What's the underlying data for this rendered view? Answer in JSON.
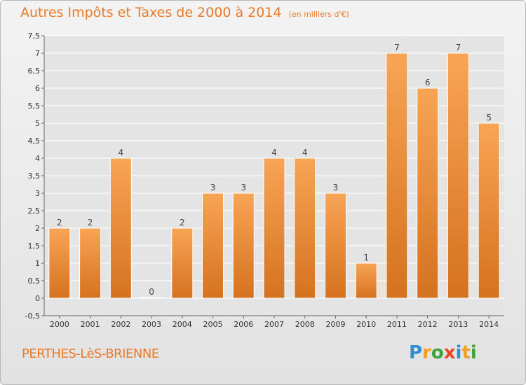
{
  "chart_data": {
    "type": "bar",
    "title": "Autres Impôts et Taxes de 2000 à 2014",
    "unit": "(en milliers d'€)",
    "categories": [
      "2000",
      "2001",
      "2002",
      "2003",
      "2004",
      "2005",
      "2006",
      "2007",
      "2008",
      "2009",
      "2010",
      "2011",
      "2012",
      "2013",
      "2014"
    ],
    "values": [
      2,
      2,
      4,
      0,
      2,
      3,
      3,
      4,
      4,
      3,
      1,
      7,
      6,
      7,
      5
    ],
    "data_labels": [
      "2",
      "2",
      "4",
      "0",
      "2",
      "3",
      "3",
      "4",
      "4",
      "3",
      "1",
      "7",
      "6",
      "7",
      "5"
    ],
    "ylim": [
      -0.5,
      7.5
    ],
    "y_ticks": [
      "-0,5",
      "0",
      "0,5",
      "1",
      "1,5",
      "2",
      "2,5",
      "3",
      "3,5",
      "4",
      "4,5",
      "5",
      "5,5",
      "6",
      "6,5",
      "7",
      "7,5"
    ],
    "y_tick_values": [
      -0.5,
      0,
      0.5,
      1,
      1.5,
      2,
      2.5,
      3,
      3.5,
      4,
      4.5,
      5,
      5.5,
      6,
      6.5,
      7,
      7.5
    ],
    "grid": true,
    "colors": {
      "bar_top": "#f7a555",
      "bar_bottom": "#d5721f",
      "grid": "#ffffff",
      "axis": "#666666"
    }
  },
  "footer": {
    "commune": "PERTHES-LèS-BRIENNE"
  },
  "logo": {
    "letters": [
      {
        "ch": "P",
        "color": "#2f8fd0"
      },
      {
        "ch": "r",
        "color": "#f0a020"
      },
      {
        "ch": "o",
        "color": "#3aa53a"
      },
      {
        "ch": "x",
        "color": "#e8452a"
      },
      {
        "ch": "i",
        "color": "#2f8fd0"
      },
      {
        "ch": "t",
        "color": "#f0a020"
      },
      {
        "ch": "i",
        "color": "#3aa53a"
      }
    ]
  }
}
